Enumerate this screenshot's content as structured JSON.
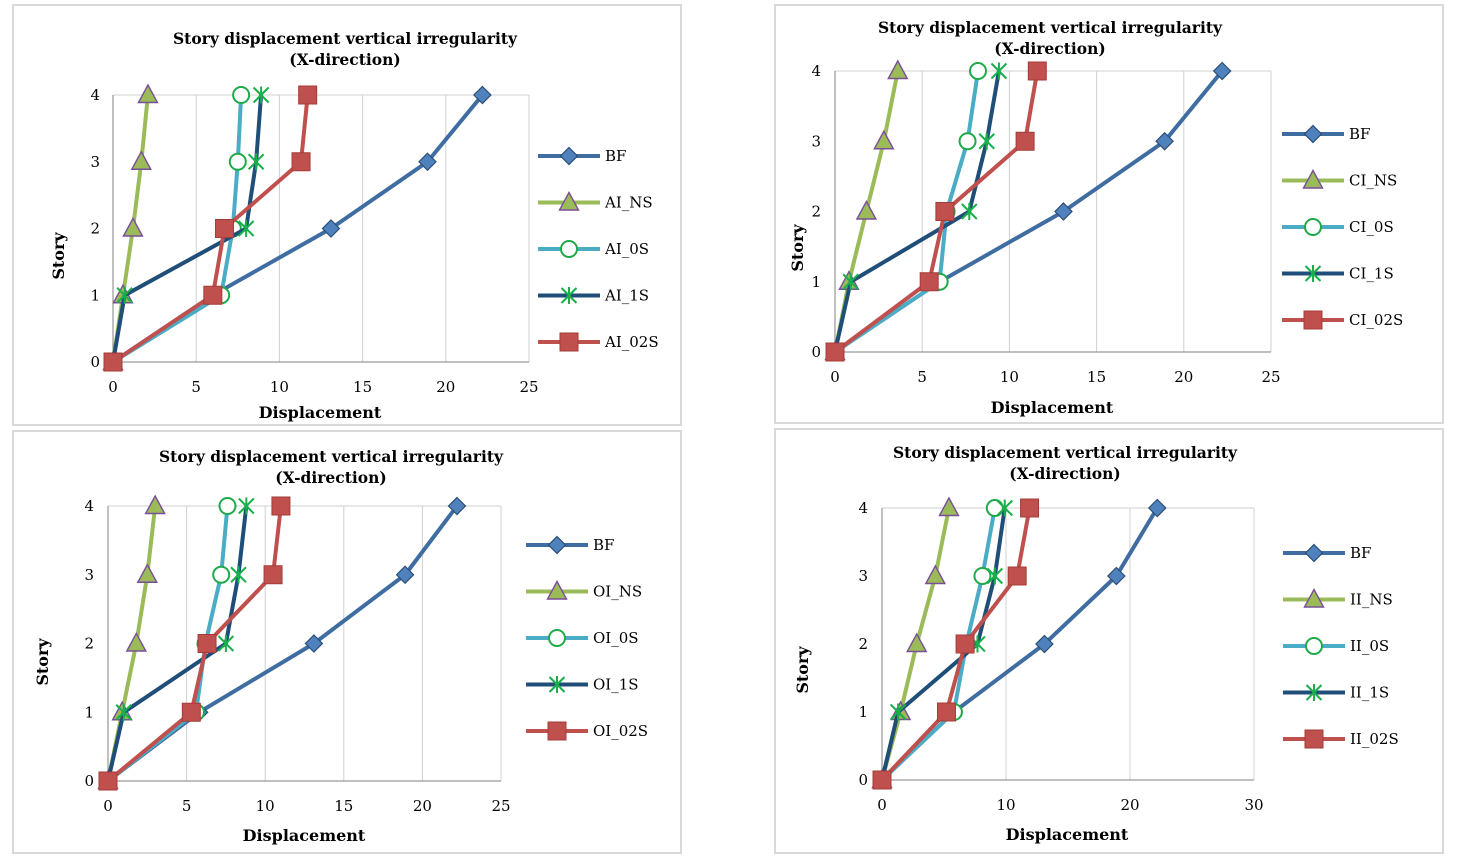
{
  "chart_data": [
    {
      "type": "line",
      "title": "Story displacement vertical irregularity",
      "subtitle": "(X-direction)",
      "xlabel": "Displacement",
      "ylabel": "Story",
      "xlim": [
        0,
        25
      ],
      "ylim": [
        0,
        4
      ],
      "xticks": [
        "0",
        "5",
        "10",
        "15",
        "20",
        "25"
      ],
      "yticks": [
        "0",
        "1",
        "2",
        "3",
        "4"
      ],
      "grid": "vertical",
      "legend": "right",
      "series": [
        {
          "name": "BF",
          "marker": "diamond",
          "color": "#3f6da2",
          "x": [
            0,
            6.0,
            13.1,
            18.9,
            22.2
          ],
          "y": [
            0,
            1,
            2,
            3,
            4
          ]
        },
        {
          "name": "AI_NS",
          "marker": "triangle",
          "color": "#9bbb59",
          "x": [
            0,
            0.6,
            1.2,
            1.7,
            2.1
          ],
          "y": [
            0,
            1,
            2,
            3,
            4
          ]
        },
        {
          "name": "AI_0S",
          "marker": "circle",
          "color": "#4bacc6",
          "x": [
            0,
            6.5,
            7.2,
            7.5,
            7.7
          ],
          "y": [
            0,
            1,
            2,
            3,
            4
          ]
        },
        {
          "name": "AI_1S",
          "marker": "star",
          "color": "#1f4e79",
          "x": [
            0,
            0.7,
            8.0,
            8.6,
            8.9
          ],
          "y": [
            0,
            1,
            2,
            3,
            4
          ]
        },
        {
          "name": "AI_02S",
          "marker": "square",
          "color": "#c0504d",
          "x": [
            0,
            6.0,
            6.7,
            11.3,
            11.7
          ],
          "y": [
            0,
            1,
            2,
            3,
            4
          ]
        }
      ]
    },
    {
      "type": "line",
      "title": "Story displacement vertical irregularity",
      "subtitle": "(X-direction)",
      "xlabel": "Displacement",
      "ylabel": "Story",
      "xlim": [
        0,
        25
      ],
      "ylim": [
        0,
        4
      ],
      "xticks": [
        "0",
        "5",
        "10",
        "15",
        "20",
        "25"
      ],
      "yticks": [
        "0",
        "1",
        "2",
        "3",
        "4"
      ],
      "grid": "vertical",
      "legend": "right",
      "series": [
        {
          "name": "BF",
          "marker": "diamond",
          "color": "#3f6da2",
          "x": [
            0,
            6.0,
            13.1,
            18.9,
            22.2
          ],
          "y": [
            0,
            1,
            2,
            3,
            4
          ]
        },
        {
          "name": "CI_NS",
          "marker": "triangle",
          "color": "#9bbb59",
          "x": [
            0,
            0.8,
            1.8,
            2.8,
            3.6
          ],
          "y": [
            0,
            1,
            2,
            3,
            4
          ]
        },
        {
          "name": "CI_0S",
          "marker": "circle",
          "color": "#4bacc6",
          "x": [
            0,
            6.0,
            6.4,
            7.6,
            8.2
          ],
          "y": [
            0,
            1,
            2,
            3,
            4
          ]
        },
        {
          "name": "CI_1S",
          "marker": "star",
          "color": "#1f4e79",
          "x": [
            0,
            0.9,
            7.7,
            8.7,
            9.4
          ],
          "y": [
            0,
            1,
            2,
            3,
            4
          ]
        },
        {
          "name": "CI_02S",
          "marker": "square",
          "color": "#c0504d",
          "x": [
            0,
            5.4,
            6.3,
            10.9,
            11.6
          ],
          "y": [
            0,
            1,
            2,
            3,
            4
          ]
        }
      ]
    },
    {
      "type": "line",
      "title": "Story displacement vertical irregularity",
      "subtitle": "(X-direction)",
      "xlabel": "Displacement",
      "ylabel": "Story",
      "xlim": [
        0,
        25
      ],
      "ylim": [
        0,
        4
      ],
      "xticks": [
        "0",
        "5",
        "10",
        "15",
        "20",
        "25"
      ],
      "yticks": [
        "0",
        "1",
        "2",
        "3",
        "4"
      ],
      "grid": "vertical",
      "legend": "right",
      "series": [
        {
          "name": "BF",
          "marker": "diamond",
          "color": "#3f6da2",
          "x": [
            0,
            5.8,
            13.1,
            18.9,
            22.2
          ],
          "y": [
            0,
            1,
            2,
            3,
            4
          ]
        },
        {
          "name": "OI_NS",
          "marker": "triangle",
          "color": "#9bbb59",
          "x": [
            0,
            0.9,
            1.8,
            2.5,
            3.0
          ],
          "y": [
            0,
            1,
            2,
            3,
            4
          ]
        },
        {
          "name": "OI_0S",
          "marker": "circle",
          "color": "#4bacc6",
          "x": [
            0,
            5.6,
            6.2,
            7.2,
            7.6
          ],
          "y": [
            0,
            1,
            2,
            3,
            4
          ]
        },
        {
          "name": "OI_1S",
          "marker": "star",
          "color": "#1f4e79",
          "x": [
            0,
            1.0,
            7.5,
            8.3,
            8.8
          ],
          "y": [
            0,
            1,
            2,
            3,
            4
          ]
        },
        {
          "name": "OI_02S",
          "marker": "square",
          "color": "#c0504d",
          "x": [
            0,
            5.3,
            6.3,
            10.5,
            11.0
          ],
          "y": [
            0,
            1,
            2,
            3,
            4
          ]
        }
      ]
    },
    {
      "type": "line",
      "title": "Story displacement vertical irregularity",
      "subtitle": "(X-direction)",
      "xlabel": "Displacement",
      "ylabel": "Story",
      "xlim": [
        0,
        30
      ],
      "ylim": [
        0,
        4
      ],
      "xticks": [
        "0",
        "10",
        "20",
        "30"
      ],
      "yticks": [
        "0",
        "1",
        "2",
        "3",
        "4"
      ],
      "grid": "vertical",
      "legend": "right",
      "series": [
        {
          "name": "BF",
          "marker": "diamond",
          "color": "#3f6da2",
          "x": [
            0,
            5.8,
            13.1,
            18.9,
            22.2
          ],
          "y": [
            0,
            1,
            2,
            3,
            4
          ]
        },
        {
          "name": "II_NS",
          "marker": "triangle",
          "color": "#9bbb59",
          "x": [
            0,
            1.5,
            2.8,
            4.3,
            5.4
          ],
          "y": [
            0,
            1,
            2,
            3,
            4
          ]
        },
        {
          "name": "II_0S",
          "marker": "circle",
          "color": "#4bacc6",
          "x": [
            0,
            5.8,
            6.8,
            8.1,
            9.1
          ],
          "y": [
            0,
            1,
            2,
            3,
            4
          ]
        },
        {
          "name": "II_1S",
          "marker": "star",
          "color": "#1f4e79",
          "x": [
            0,
            1.3,
            7.7,
            9.1,
            9.9
          ],
          "y": [
            0,
            1,
            2,
            3,
            4
          ]
        },
        {
          "name": "II_02S",
          "marker": "square",
          "color": "#c0504d",
          "x": [
            0,
            5.2,
            6.7,
            10.9,
            11.9
          ],
          "y": [
            0,
            1,
            2,
            3,
            4
          ]
        }
      ]
    }
  ]
}
